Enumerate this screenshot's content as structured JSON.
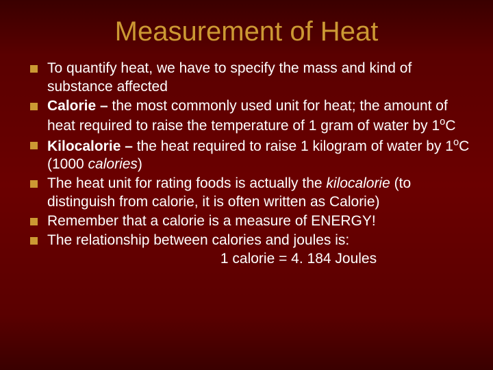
{
  "slide": {
    "title": "Measurement of Heat",
    "title_color": "#cc9933",
    "title_fontsize": 40,
    "body_fontsize": 21,
    "text_color": "#ffffff",
    "bullet_color": "#cc9933",
    "background_gradient": [
      "#3a0000",
      "#6b0000",
      "#3a0000"
    ],
    "bullets": [
      {
        "segments": [
          {
            "text": "To quantify heat, we have to specify the mass and kind of substance affected",
            "bold": false,
            "italic": false
          }
        ]
      },
      {
        "segments": [
          {
            "text": "Calorie – ",
            "bold": true,
            "italic": false
          },
          {
            "text": "the most commonly used unit for heat; the amount of heat required to raise the temperature of 1 gram of water by 1",
            "bold": false,
            "italic": false
          },
          {
            "text": "o",
            "bold": false,
            "italic": false,
            "sup": true
          },
          {
            "text": "C",
            "bold": false,
            "italic": false
          }
        ]
      },
      {
        "segments": [
          {
            "text": "Kilocalorie – ",
            "bold": true,
            "italic": false
          },
          {
            "text": "the heat required to raise 1 kilogram of water by 1",
            "bold": false,
            "italic": false
          },
          {
            "text": "o",
            "bold": false,
            "italic": false,
            "sup": true
          },
          {
            "text": "C (1000 ",
            "bold": false,
            "italic": false
          },
          {
            "text": "calories",
            "bold": false,
            "italic": true
          },
          {
            "text": ")",
            "bold": false,
            "italic": false
          }
        ]
      },
      {
        "segments": [
          {
            "text": "The heat unit for rating foods is actually the ",
            "bold": false,
            "italic": false
          },
          {
            "text": "kilocalorie",
            "bold": false,
            "italic": true
          },
          {
            "text": " (to distinguish from calorie, it is often written as Calorie)",
            "bold": false,
            "italic": false
          }
        ]
      },
      {
        "segments": [
          {
            "text": "Remember that a calorie is a measure of ENERGY!",
            "bold": false,
            "italic": false
          }
        ]
      },
      {
        "segments": [
          {
            "text": "The relationship between calories and joules is:",
            "bold": false,
            "italic": false
          }
        ]
      }
    ],
    "center_line": "1 calorie = 4. 184 Joules"
  }
}
